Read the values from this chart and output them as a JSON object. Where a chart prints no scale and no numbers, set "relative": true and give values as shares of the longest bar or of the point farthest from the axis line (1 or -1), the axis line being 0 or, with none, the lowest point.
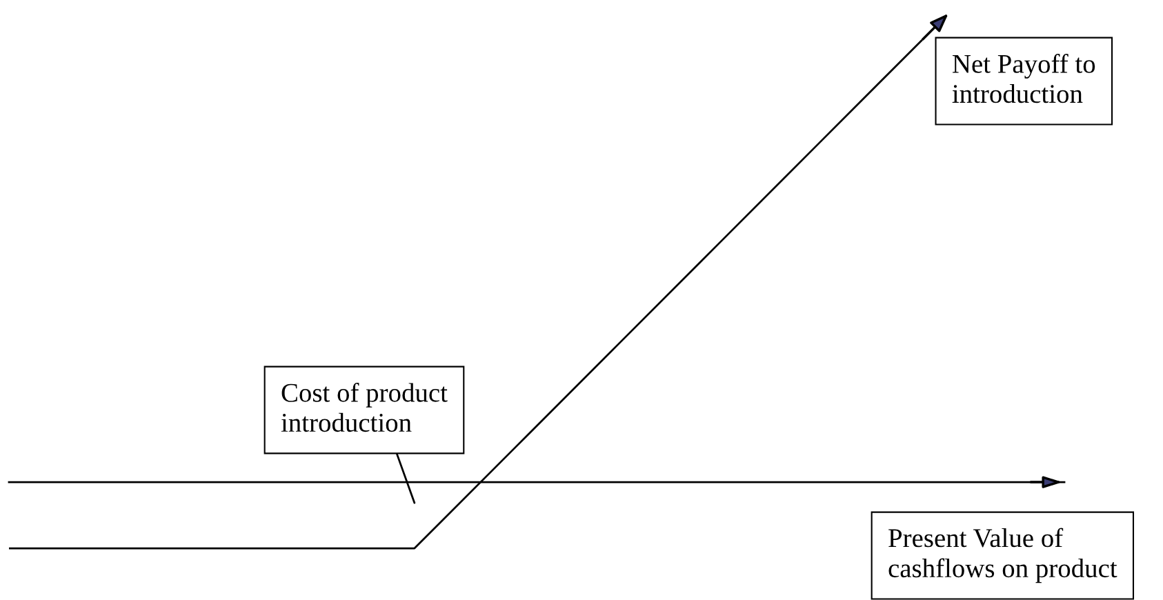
{
  "chart_data": {
    "type": "line",
    "relative": true,
    "xlabel": "Present Value of\ncashflows on product",
    "categories": [
      null,
      null,
      null,
      null,
      null,
      null,
      null,
      null,
      null,
      null
    ],
    "series": [
      {
        "name": "Net Payoff to\nintroduction",
        "color": "#000000",
        "values": [
          -0.15,
          -0.15,
          -0.15,
          -0.15,
          -0.15,
          0.08,
          0.31,
          0.54,
          0.77,
          1.0
        ]
      }
    ],
    "annotations": [
      "Cost of product\nintroduction"
    ],
    "marker": "none",
    "line_style": "solid",
    "grid": false,
    "legend": "top right"
  }
}
